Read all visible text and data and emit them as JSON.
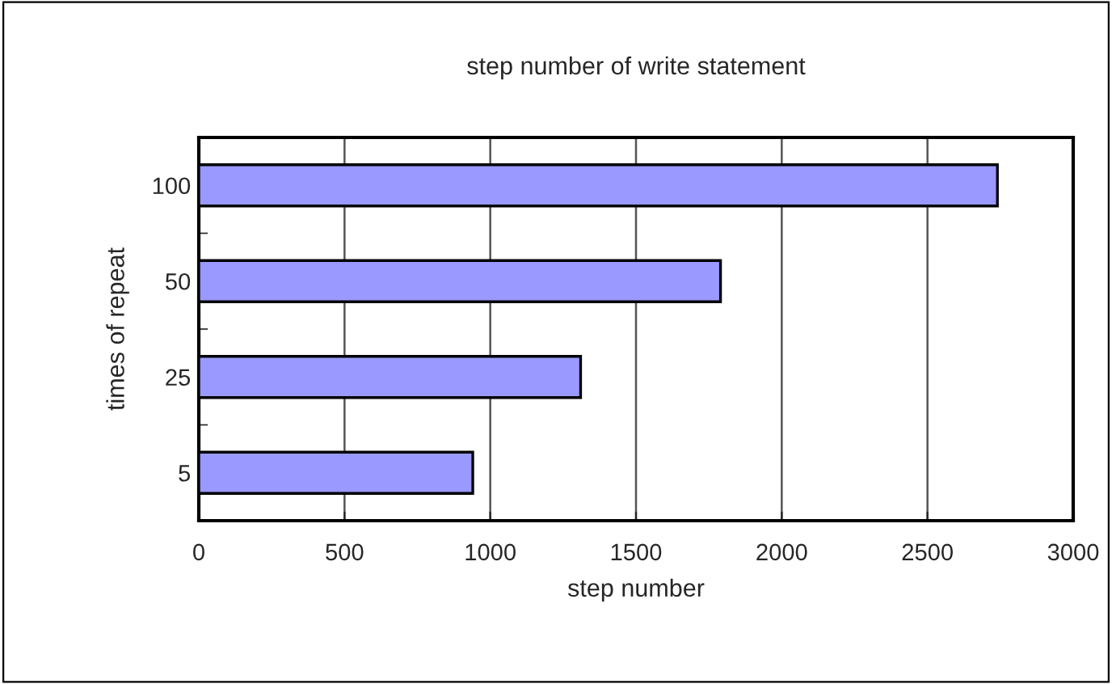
{
  "chart_data": {
    "type": "bar",
    "orientation": "horizontal",
    "title": "step number of write statement",
    "xlabel": "step number",
    "ylabel": "times of repeat",
    "categories": [
      "100",
      "50",
      "25",
      "5"
    ],
    "values": [
      2740,
      1790,
      1310,
      940
    ],
    "color": "#9999ff",
    "xlim": [
      0,
      3000
    ],
    "xticks": [
      0,
      500,
      1000,
      1500,
      2000,
      2500,
      3000
    ],
    "grid": "x",
    "legend": false
  }
}
